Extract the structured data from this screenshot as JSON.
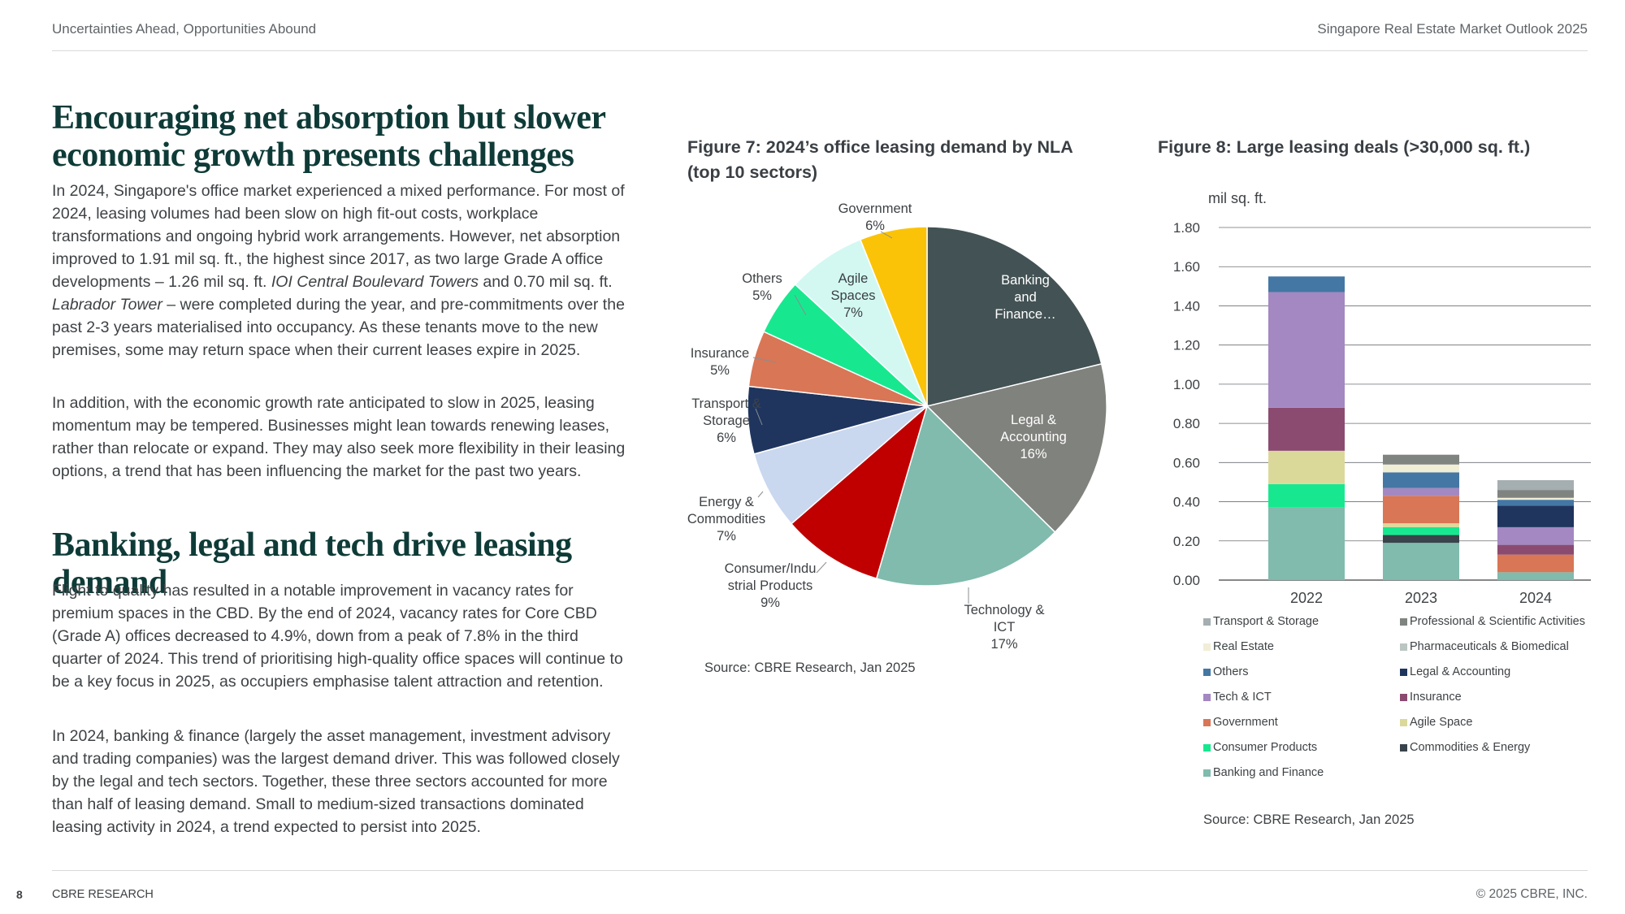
{
  "header": {
    "left": "Uncertainties Ahead, Opportunities Abound",
    "right": "Singapore Real Estate Market Outlook 2025"
  },
  "section1": {
    "heading": "Encouraging net absorption but slower economic growth presents challenges",
    "p1_a": "In 2024, Singapore's office market experienced a mixed performance. For most of 2024, leasing volumes had been slow on high fit-out costs, workplace transformations and ongoing hybrid work arrangements. However, net absorption improved to 1.91 mil sq. ft., the highest since 2017,  as two large Grade A office developments – 1.26 mil sq. ft. ",
    "p1_b": "IOI Central Boulevard Towers",
    "p1_c": " and 0.70 mil sq. ft. ",
    "p1_d": "Labrador Tower",
    "p1_e": " – were completed during the year, and pre-commitments over the past 2-3 years materialised into occupancy. As these tenants move to the new premises, some may return space when their current leases expire in 2025.",
    "p2": "In addition, with the economic growth rate anticipated to slow in 2025, leasing momentum may be tempered. Businesses might lean towards renewing leases, rather than relocate or expand. They may also seek more flexibility in their leasing options, a trend that has been influencing the market for the past two years."
  },
  "section2": {
    "heading": "Banking, legal and tech drive leasing demand",
    "p3": "Flight to quality has resulted in a notable improvement in vacancy rates for premium spaces in the CBD. By the end of 2024, vacancy rates for Core CBD (Grade A) offices decreased to 4.9%, down from a peak of 7.8% in the third quarter of 2024. This trend of prioritising high-quality office spaces will continue to be a key focus in 2025, as occupiers emphasise talent attraction and retention.",
    "p4": "In 2024, banking & finance (largely the asset management, investment advisory and trading companies) was the largest demand driver. This was followed closely by the legal and tech sectors. Together, these three sectors accounted for more than half of leasing demand. Small to medium-sized transactions dominated leasing activity in 2024, a trend expected to persist into 2025."
  },
  "figure7": {
    "title": "Figure 7: 2024’s office leasing demand by NLA (top 10 sectors)",
    "source": "Source: CBRE Research, Jan 2025"
  },
  "figure8": {
    "title": "Figure 8: Large leasing deals (>30,000 sq. ft.)",
    "source": "Source: CBRE Research, Jan 2025"
  },
  "chart_data": [
    {
      "type": "pie",
      "title": "Figure 7: 2024’s office leasing demand by NLA (top 10 sectors)",
      "slices": [
        {
          "label": "Banking and Finance",
          "display": [
            "Banking",
            "and",
            "Finance…"
          ],
          "value": 21,
          "color": "#435254"
        },
        {
          "label": "Legal & Accounting",
          "display": [
            "Legal &",
            "Accounting",
            "16%"
          ],
          "value": 16,
          "color": "#80827d"
        },
        {
          "label": "Technology & ICT",
          "display": [
            "Technology &",
            "ICT",
            "17%"
          ],
          "value": 17,
          "color": "#80bbad"
        },
        {
          "label": "Consumer/Industrial Products",
          "display": [
            "Consumer/Indu",
            "strial Products",
            "9%"
          ],
          "value": 9,
          "color": "#c00000"
        },
        {
          "label": "Energy & Commodities",
          "display": [
            "Energy &",
            "Commodities",
            "7%"
          ],
          "value": 7,
          "color": "#c9d7ef"
        },
        {
          "label": "Transport & Storage",
          "display": [
            "Transport &",
            "Storage",
            "6%"
          ],
          "value": 6,
          "color": "#1f355e"
        },
        {
          "label": "Insurance",
          "display": [
            "Insurance",
            "5%"
          ],
          "value": 5,
          "color": "#d97656"
        },
        {
          "label": "Others",
          "display": [
            "Others",
            "5%"
          ],
          "value": 5,
          "color": "#17e88f"
        },
        {
          "label": "Agile Spaces",
          "display": [
            "Agile",
            "Spaces",
            "7%"
          ],
          "value": 7,
          "color": "#d3f8f2"
        },
        {
          "label": "Government",
          "display": [
            "Government",
            "6%"
          ],
          "value": 6,
          "color": "#fbc308"
        }
      ]
    },
    {
      "type": "bar",
      "stacked": true,
      "title": "Figure 8: Large leasing deals (>30,000 sq. ft.)",
      "ylabel": "mil sq. ft.",
      "ylim": [
        0,
        1.8
      ],
      "yticks": [
        "0.00",
        "0.20",
        "0.40",
        "0.60",
        "0.80",
        "1.00",
        "1.20",
        "1.40",
        "1.60",
        "1.80"
      ],
      "grid": true,
      "categories": [
        "2022",
        "2023",
        "2024"
      ],
      "series": [
        {
          "name": "Banking and Finance",
          "color": "#80bbad",
          "values": [
            0.37,
            0.19,
            0.04
          ]
        },
        {
          "name": "Commodities & Energy",
          "color": "#38434a",
          "values": [
            0,
            0.04,
            0
          ]
        },
        {
          "name": "Consumer Products",
          "color": "#17e88f",
          "values": [
            0.12,
            0.04,
            0
          ]
        },
        {
          "name": "Agile Space",
          "color": "#dbd99a",
          "values": [
            0.17,
            0.02,
            0
          ]
        },
        {
          "name": "Government",
          "color": "#d97656",
          "values": [
            0,
            0.14,
            0.09
          ]
        },
        {
          "name": "Insurance",
          "color": "#8b4b70",
          "values": [
            0.22,
            0,
            0.05
          ]
        },
        {
          "name": "Tech & ICT",
          "color": "#a388c2",
          "values": [
            0.59,
            0.04,
            0.09
          ]
        },
        {
          "name": "Legal & Accounting",
          "color": "#1f355e",
          "values": [
            0,
            0,
            0.11
          ]
        },
        {
          "name": "Others",
          "color": "#4477a3",
          "values": [
            0.08,
            0.08,
            0.03
          ]
        },
        {
          "name": "Pharmaceuticals & Biomedical",
          "color": "#bbc6c3",
          "values": [
            0,
            0,
            0
          ]
        },
        {
          "name": "Real Estate",
          "color": "#f1eed6",
          "values": [
            0,
            0.04,
            0.01
          ]
        },
        {
          "name": "Professional & Scientific Activities",
          "color": "#7f8480",
          "values": [
            0,
            0.05,
            0.04
          ]
        },
        {
          "name": "Transport & Storage",
          "color": "#a5aeb0",
          "values": [
            0,
            0,
            0.05
          ]
        }
      ],
      "legend": [
        {
          "name": "Transport & Storage",
          "color": "#a5aeb0"
        },
        {
          "name": "Professional & Scientific Activities",
          "color": "#7f8480"
        },
        {
          "name": "Real Estate",
          "color": "#f1eed6"
        },
        {
          "name": "Pharmaceuticals & Biomedical",
          "color": "#bbc6c3"
        },
        {
          "name": "Others",
          "color": "#4477a3"
        },
        {
          "name": "Legal & Accounting",
          "color": "#1f355e"
        },
        {
          "name": "Tech & ICT",
          "color": "#a388c2"
        },
        {
          "name": "Insurance",
          "color": "#8b4b70"
        },
        {
          "name": "Government",
          "color": "#d97656"
        },
        {
          "name": "Agile Space",
          "color": "#dbd99a"
        },
        {
          "name": "Consumer Products",
          "color": "#17e88f"
        },
        {
          "name": "Commodities & Energy",
          "color": "#38434a"
        },
        {
          "name": "Banking and Finance",
          "color": "#80bbad"
        }
      ],
      "legend_placement": "bottom"
    }
  ],
  "footer": {
    "page": "8",
    "left": "CBRE RESEARCH",
    "right": "© 2025 CBRE, INC."
  }
}
